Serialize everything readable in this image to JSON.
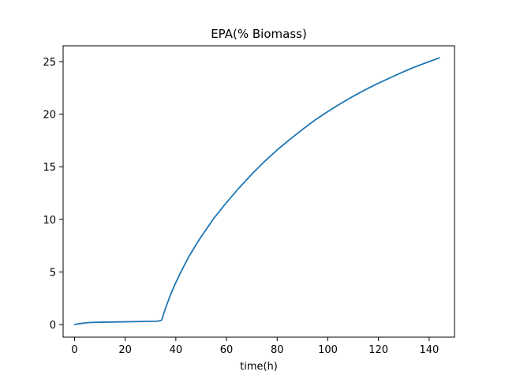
{
  "chart_data": {
    "type": "line",
    "title": "EPA(% Biomass)",
    "xlabel": "time(h)",
    "ylabel": "",
    "xlim": [
      -4.5,
      150
    ],
    "ylim": [
      -1.2,
      26.5
    ],
    "xticks": [
      0,
      20,
      40,
      60,
      80,
      100,
      120,
      140
    ],
    "yticks": [
      0,
      5,
      10,
      15,
      20,
      25
    ],
    "grid": false,
    "legend": "none",
    "series": [
      {
        "color": "#1f77b4",
        "points": [
          [
            0,
            0.0
          ],
          [
            2,
            0.08
          ],
          [
            4,
            0.15
          ],
          [
            6,
            0.19
          ],
          [
            8,
            0.21
          ],
          [
            10,
            0.22
          ],
          [
            15,
            0.24
          ],
          [
            20,
            0.26
          ],
          [
            25,
            0.28
          ],
          [
            30,
            0.3
          ],
          [
            32,
            0.31
          ],
          [
            33,
            0.33
          ],
          [
            34,
            0.38
          ],
          [
            34.5,
            0.45
          ],
          [
            35,
            0.9
          ],
          [
            36,
            1.6
          ],
          [
            38,
            2.9
          ],
          [
            40,
            4.0
          ],
          [
            42,
            5.0
          ],
          [
            45,
            6.4
          ],
          [
            48,
            7.6
          ],
          [
            50,
            8.35
          ],
          [
            55,
            10.1
          ],
          [
            60,
            11.6
          ],
          [
            65,
            13.0
          ],
          [
            70,
            14.3
          ],
          [
            75,
            15.5
          ],
          [
            80,
            16.6
          ],
          [
            85,
            17.6
          ],
          [
            90,
            18.55
          ],
          [
            95,
            19.45
          ],
          [
            100,
            20.25
          ],
          [
            105,
            21.0
          ],
          [
            110,
            21.7
          ],
          [
            115,
            22.35
          ],
          [
            120,
            22.95
          ],
          [
            125,
            23.5
          ],
          [
            130,
            24.05
          ],
          [
            135,
            24.55
          ],
          [
            140,
            25.0
          ],
          [
            144,
            25.35
          ]
        ]
      }
    ]
  }
}
